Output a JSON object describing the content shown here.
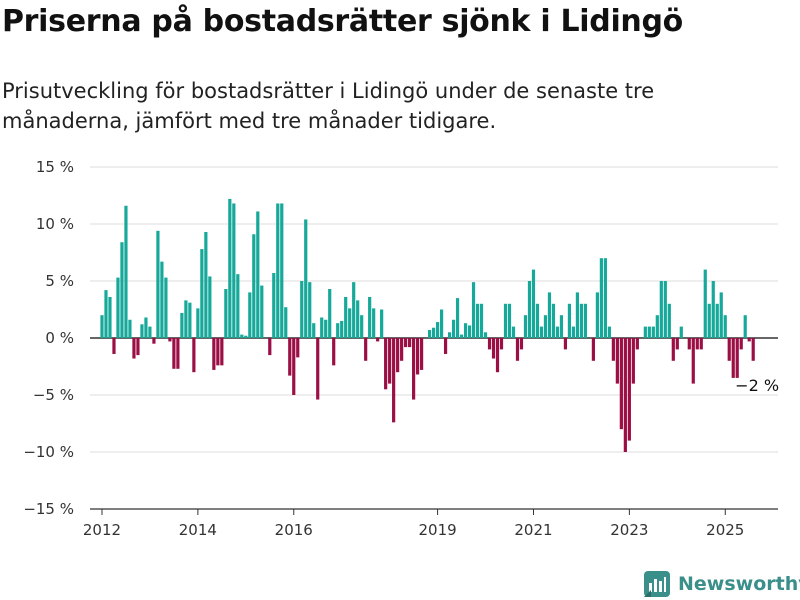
{
  "header": {
    "title": "Priserna på bostadsrätter sjönk i Lidingö",
    "subtitle": "Prisutveckling för bostadsrätter i Lidingö under de senaste tre månaderna, jämfört med tre månader tidigare."
  },
  "brand": {
    "name": "Newsworthy"
  },
  "colors": {
    "positive": "#16a99a",
    "negative": "#9b0f45",
    "grid": "#dddddd",
    "axis": "#333333"
  },
  "chart_data": {
    "type": "bar",
    "title": "Priserna på bostadsrätter sjönk i Lidingö",
    "subtitle": "Prisutveckling för bostadsrätter i Lidingö under de senaste tre månaderna, jämfört med tre månader tidigare.",
    "xlabel": "",
    "ylabel": "",
    "unit": "%",
    "ylim": [
      -15,
      15
    ],
    "yticks": [
      15,
      10,
      5,
      0,
      -5,
      -10,
      -15
    ],
    "ytick_labels": [
      "15 %",
      "10 %",
      "5 %",
      "0 %",
      "−5 %",
      "−10 %",
      "−15 %"
    ],
    "xlim": [
      2011.75,
      2026.1
    ],
    "xticks": [
      2012,
      2014,
      2016,
      2019,
      2021,
      2023,
      2025
    ],
    "xtick_labels": [
      "2012",
      "2014",
      "2016",
      "2019",
      "2021",
      "2023",
      "2025"
    ],
    "grid": true,
    "legend": false,
    "annotation": {
      "text": "−2 %",
      "x": 2025.29,
      "y": -2
    },
    "x_start": 2012.0,
    "x_step": 0.08333,
    "values": [
      2,
      4.2,
      3.6,
      -1.4,
      5.3,
      8.4,
      11.6,
      1.6,
      -1.8,
      -1.5,
      1.2,
      1.8,
      1.0,
      -0.5,
      9.4,
      6.7,
      5.3,
      -0.3,
      -2.7,
      -2.7,
      2.2,
      3.3,
      3.1,
      -3.0,
      2.6,
      7.8,
      9.3,
      5.4,
      -2.8,
      -2.4,
      -2.4,
      4.3,
      12.2,
      11.8,
      5.6,
      0.3,
      0.2,
      4.0,
      9.1,
      11.1,
      4.6,
      0.0,
      -1.5,
      5.7,
      11.8,
      11.8,
      2.7,
      -3.3,
      -5.0,
      -1.7,
      5.0,
      10.4,
      4.9,
      1.3,
      -5.4,
      1.8,
      1.6,
      4.3,
      -2.4,
      1.3,
      1.5,
      3.6,
      2.6,
      4.9,
      3.3,
      2.0,
      -2.0,
      3.6,
      2.6,
      -0.3,
      2.5,
      -4.5,
      -4.0,
      -7.4,
      -3.0,
      -2.0,
      -0.8,
      -0.8,
      -5.4,
      -3.2,
      -2.8,
      0.0,
      0.7,
      0.9,
      1.4,
      2.5,
      -1.4,
      0.5,
      1.6,
      3.5,
      0.3,
      1.3,
      1.1,
      4.9,
      3.0,
      3.0,
      0.5,
      -1.0,
      -1.8,
      -3.0,
      -1.0,
      3.0,
      3.0,
      1.0,
      -2.0,
      -1.0,
      2.0,
      5.0,
      6.0,
      3.0,
      1.0,
      2.0,
      4.0,
      3.0,
      1.0,
      2.0,
      -1.0,
      3.0,
      1.0,
      4.0,
      3.0,
      3.0,
      0.0,
      -2.0,
      4.0,
      7.0,
      7.0,
      1.0,
      -2.0,
      -4.0,
      -8.0,
      -10.0,
      -9.0,
      -4.0,
      -1.0,
      0.0,
      1.0,
      1.0,
      1.0,
      2.0,
      5.0,
      5.0,
      3.0,
      -2.0,
      -1.0,
      1.0,
      0.0,
      -1.0,
      -4.0,
      -1.0,
      -1.0,
      6.0,
      3.0,
      5.0,
      3.0,
      4.0,
      2.0,
      -2.0,
      -3.5,
      -3.5,
      -1.0,
      2.0,
      -0.3,
      -2.0
    ]
  }
}
